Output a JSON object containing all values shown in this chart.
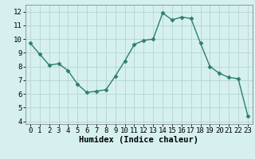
{
  "x": [
    0,
    1,
    2,
    3,
    4,
    5,
    6,
    7,
    8,
    9,
    10,
    11,
    12,
    13,
    14,
    15,
    16,
    17,
    18,
    19,
    20,
    21,
    22,
    23
  ],
  "y": [
    9.7,
    8.9,
    8.1,
    8.2,
    7.7,
    6.7,
    6.1,
    6.2,
    6.3,
    7.3,
    8.4,
    9.6,
    9.9,
    10.0,
    11.9,
    11.4,
    11.6,
    11.5,
    9.7,
    8.0,
    7.5,
    7.2,
    7.1,
    4.4
  ],
  "line_color": "#2e7d6e",
  "marker_color": "#2e7d6e",
  "bg_color": "#d6f0f0",
  "grid_color": "#b8d8d8",
  "xlabel": "Humidex (Indice chaleur)",
  "ylim": [
    3.8,
    12.5
  ],
  "xlim": [
    -0.5,
    23.5
  ],
  "yticks": [
    4,
    5,
    6,
    7,
    8,
    9,
    10,
    11,
    12
  ],
  "xticks": [
    0,
    1,
    2,
    3,
    4,
    5,
    6,
    7,
    8,
    9,
    10,
    11,
    12,
    13,
    14,
    15,
    16,
    17,
    18,
    19,
    20,
    21,
    22,
    23
  ],
  "tick_label_fontsize": 6.5,
  "xlabel_fontsize": 7.5,
  "line_width": 1.0,
  "marker_size": 2.5
}
